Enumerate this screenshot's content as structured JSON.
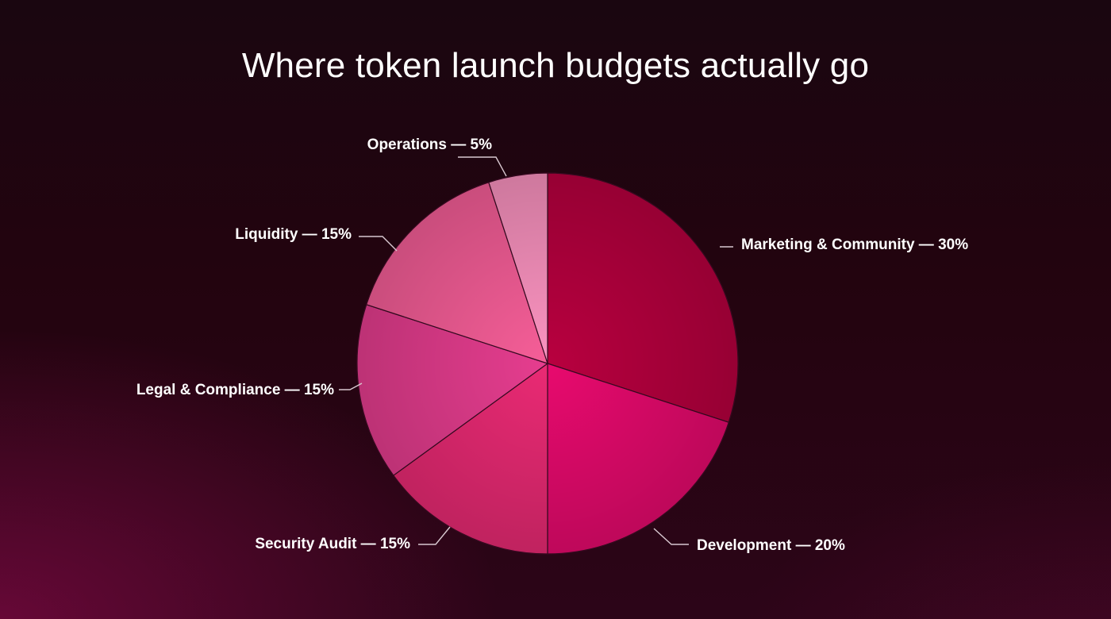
{
  "chart_data": {
    "type": "pie",
    "title": "Where token launch budgets actually go",
    "slices": [
      {
        "label": "Marketing & Community — 30%",
        "name": "Marketing & Community",
        "value": 30,
        "color": "#b8003f"
      },
      {
        "label": "Development — 20%",
        "name": "Development",
        "value": 20,
        "color": "#e80a6e"
      },
      {
        "label": "Security Audit — 15%",
        "name": "Security Audit",
        "value": 15,
        "color": "#ea2a74"
      },
      {
        "label": "Legal & Compliance — 15%",
        "name": "Legal & Compliance",
        "value": 15,
        "color": "#e63d8f"
      },
      {
        "label": "Liquidity — 15%",
        "name": "Liquidity",
        "value": 15,
        "color": "#f65e98"
      },
      {
        "label": "Operations — 5%",
        "name": "Operations",
        "value": 5,
        "color": "#fb93c0"
      }
    ],
    "start_angle_deg": 0,
    "direction": "clockwise",
    "legend": "none"
  }
}
